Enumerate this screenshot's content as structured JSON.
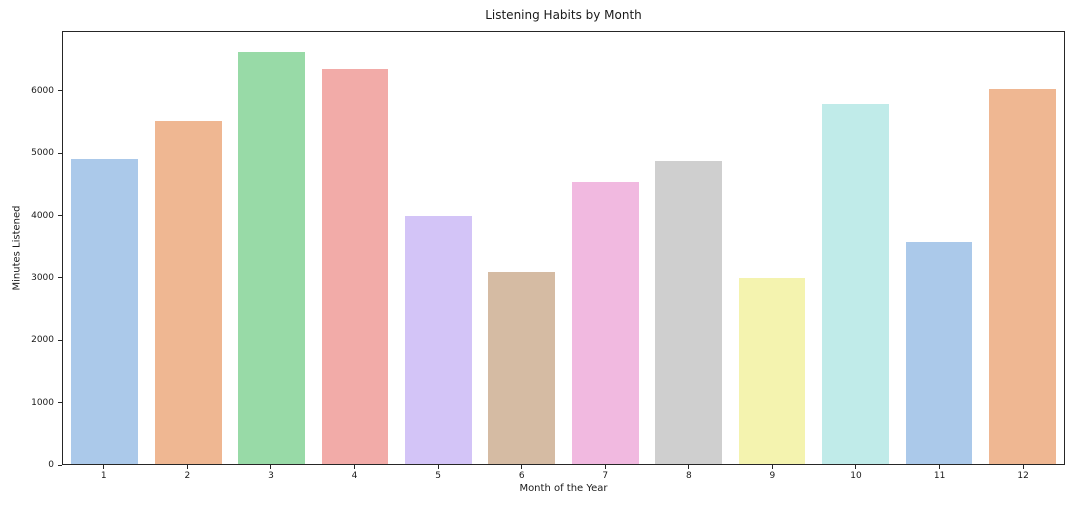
{
  "chart_data": {
    "type": "bar",
    "title": "Listening Habits by Month",
    "xlabel": "Month of the Year",
    "ylabel": "Minutes Listened",
    "categories": [
      "1",
      "2",
      "3",
      "4",
      "5",
      "6",
      "7",
      "8",
      "9",
      "10",
      "11",
      "12"
    ],
    "values": [
      4920,
      5520,
      6640,
      6370,
      4000,
      3090,
      4550,
      4880,
      3000,
      5800,
      3570,
      6040
    ],
    "bar_colors": [
      "#abc9ea",
      "#efb792",
      "#98daa7",
      "#f2aba8",
      "#d3c4f7",
      "#d5bba3",
      "#f1b9e0",
      "#cfcfcf",
      "#f4f3af",
      "#c0ebe9",
      "#abc9ea",
      "#efb792"
    ],
    "ylim": [
      0,
      6960
    ],
    "yticks": [
      0,
      1000,
      2000,
      3000,
      4000,
      5000,
      6000
    ],
    "grid": false,
    "legend_position": "none",
    "background_color": "#ffffff",
    "spine_color": "#262626"
  }
}
